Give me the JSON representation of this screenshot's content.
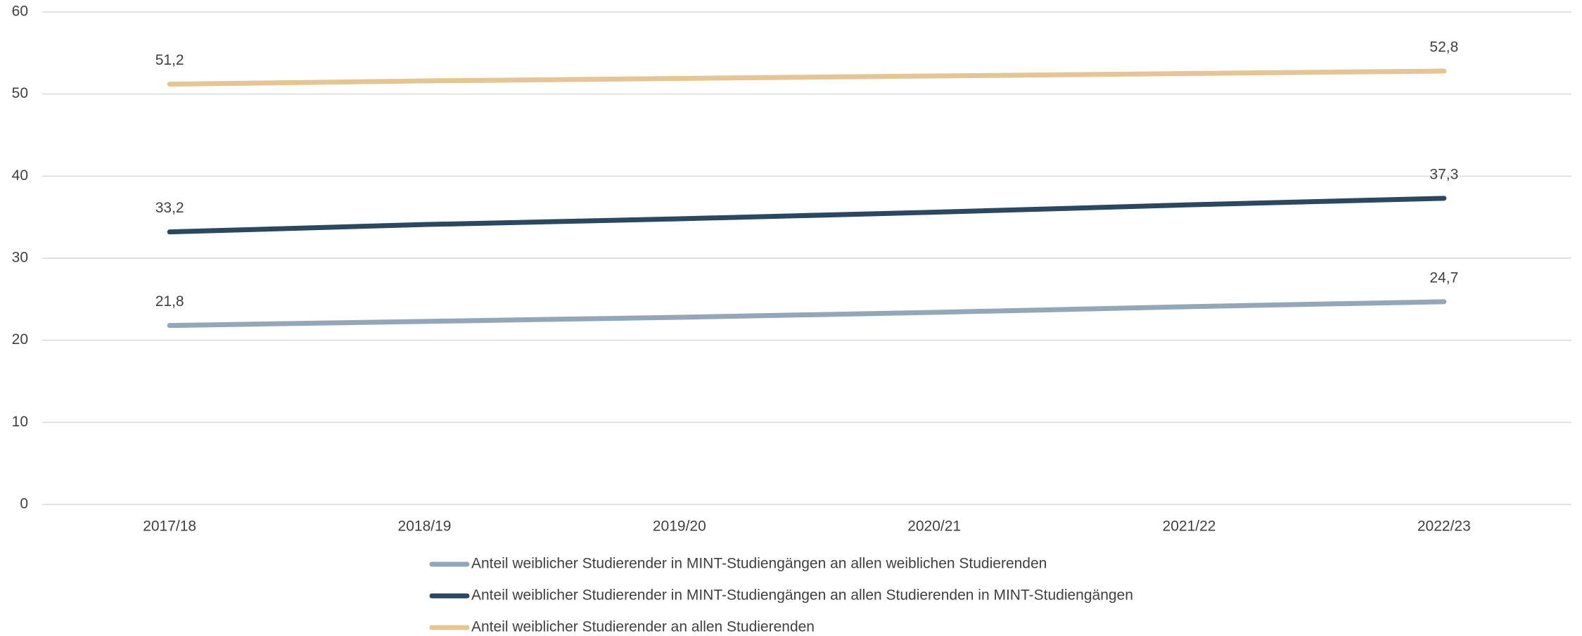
{
  "chart_data": {
    "type": "line",
    "categories": [
      "2017/18",
      "2018/19",
      "2019/20",
      "2020/21",
      "2021/22",
      "2022/23"
    ],
    "series": [
      {
        "name": "Anteil weiblicher Studierender in MINT-Studiengängen an allen weiblichen Studierenden",
        "color": "#94a7b8",
        "values": [
          21.8,
          22.3,
          22.8,
          23.4,
          24.1,
          24.7
        ],
        "value_labels": [
          "21,8",
          null,
          null,
          null,
          null,
          "24,7"
        ]
      },
      {
        "name": "Anteil weiblicher Studierender in MINT-Studiengängen an allen Studierenden in MINT-Studiengängen",
        "color": "#2c4760",
        "values": [
          33.2,
          34.1,
          34.8,
          35.6,
          36.5,
          37.3
        ],
        "value_labels": [
          "33,2",
          null,
          null,
          null,
          null,
          "37,3"
        ]
      },
      {
        "name": "Anteil weiblicher Studierender an allen Studierenden",
        "color": "#e5c595",
        "values": [
          51.2,
          51.6,
          51.9,
          52.2,
          52.5,
          52.8
        ],
        "value_labels": [
          "51,2",
          null,
          null,
          null,
          null,
          "52,8"
        ]
      }
    ],
    "ylim": [
      0,
      60
    ],
    "yticks": [
      0,
      10,
      20,
      30,
      40,
      50,
      60
    ],
    "grid": true,
    "legend": "bottom"
  }
}
